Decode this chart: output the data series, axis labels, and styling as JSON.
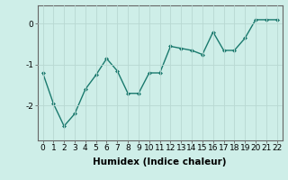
{
  "x": [
    0,
    1,
    2,
    3,
    4,
    5,
    6,
    7,
    8,
    9,
    10,
    11,
    12,
    13,
    14,
    15,
    16,
    17,
    18,
    19,
    20,
    21,
    22
  ],
  "y": [
    -1.2,
    -1.95,
    -2.5,
    -2.2,
    -1.6,
    -1.25,
    -0.85,
    -1.15,
    -1.7,
    -1.7,
    -1.2,
    -1.2,
    -0.55,
    -0.6,
    -0.65,
    -0.75,
    -0.2,
    -0.65,
    -0.65,
    -0.35,
    0.1,
    0.1,
    0.1
  ],
  "line_color": "#1a7a6e",
  "marker": "D",
  "marker_size": 2.0,
  "linewidth": 1.0,
  "bg_color": "#ceeee8",
  "grid_color": "#b8d8d2",
  "xlabel": "Humidex (Indice chaleur)",
  "yticks": [
    -2,
    -1,
    0
  ],
  "ytick_labels": [
    "-2",
    "-1",
    "0"
  ],
  "ylim": [
    -2.85,
    0.45
  ],
  "xlim": [
    -0.5,
    22.5
  ],
  "xticks": [
    0,
    1,
    2,
    3,
    4,
    5,
    6,
    7,
    8,
    9,
    10,
    11,
    12,
    13,
    14,
    15,
    16,
    17,
    18,
    19,
    20,
    21,
    22
  ],
  "xlabel_fontsize": 7.5,
  "tick_fontsize": 6.5,
  "spine_color": "#666666"
}
